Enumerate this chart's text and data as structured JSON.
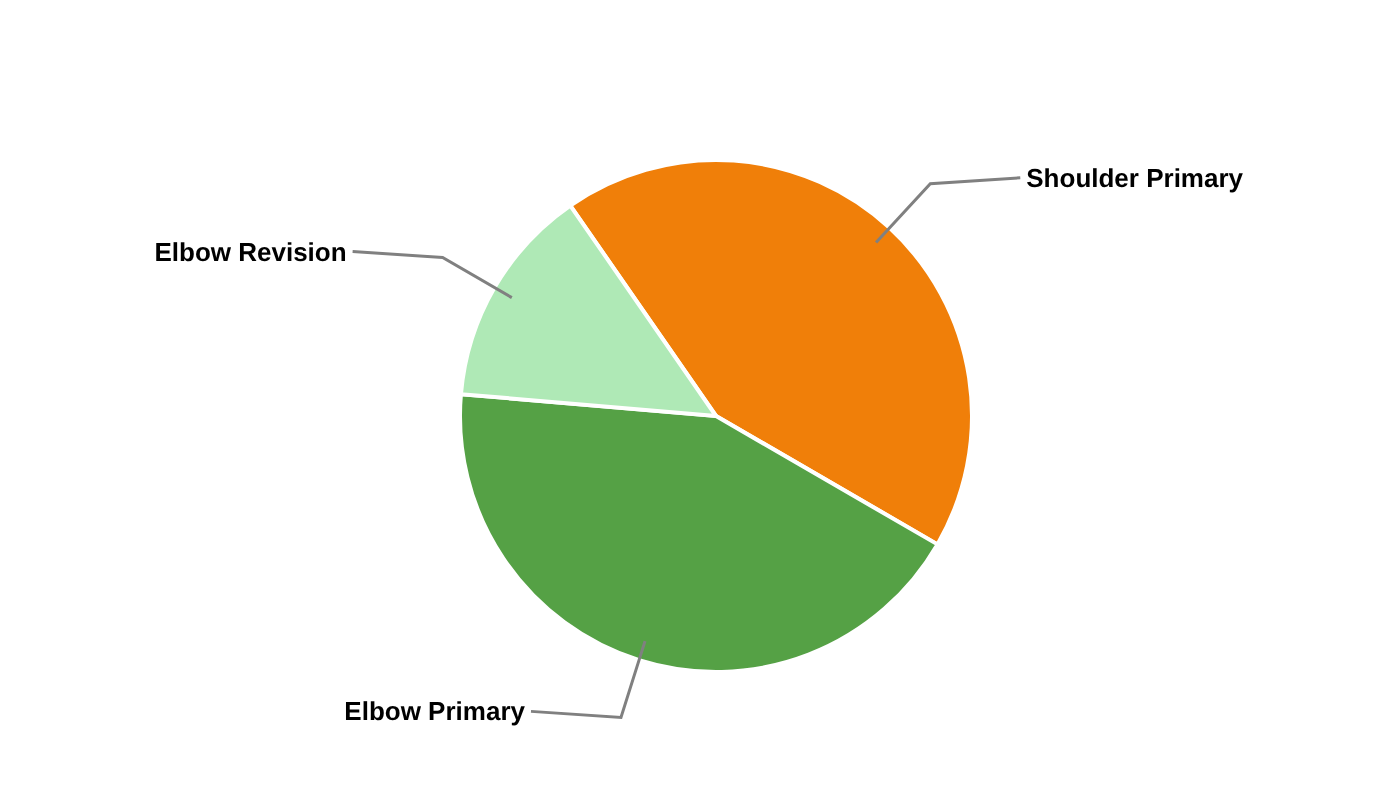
{
  "chart_data": {
    "type": "pie",
    "categories": [
      "Shoulder Primary",
      "Elbow Primary",
      "Elbow Revision"
    ],
    "values": [
      43,
      43,
      14
    ],
    "colors": [
      "#f07f09",
      "#55a145",
      "#afe9b6"
    ],
    "legend": false
  }
}
